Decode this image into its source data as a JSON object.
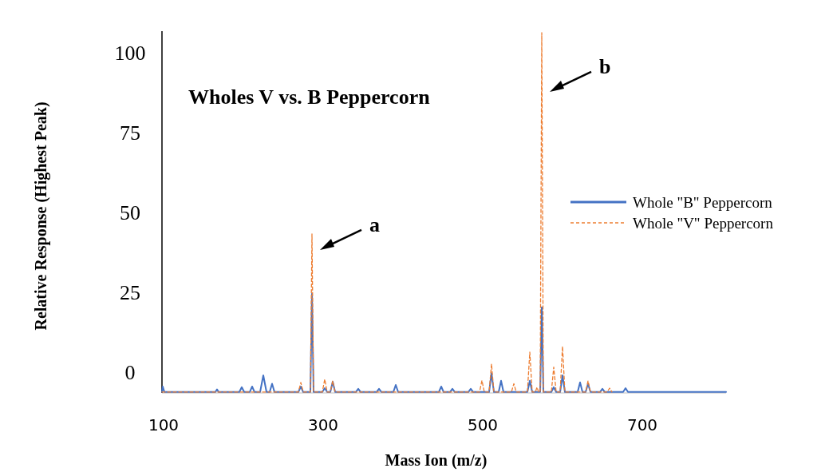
{
  "chart_data": {
    "type": "line",
    "title": "Wholes V vs. B Peppercorn",
    "xlabel": "Mass Ion (m/z)",
    "ylabel": "Relative Response (Highest Peak)",
    "xlim": [
      98,
      805
    ],
    "xticks": [
      100,
      300,
      500,
      700
    ],
    "ylim": [
      -6.3,
      107
    ],
    "yticks": [
      0,
      25,
      50,
      75,
      100
    ],
    "grid": false,
    "legend": "right",
    "annotations": [
      {
        "text": "a",
        "x": 286,
        "y": 43.5
      },
      {
        "text": "b",
        "x": 574,
        "y": 93
      }
    ],
    "series": [
      {
        "name": "Whole \"B\" Peppercorn",
        "color": "#4472c4",
        "line_style": "solid",
        "x": [
          98,
          99,
          101,
          165,
          167,
          169,
          195,
          198,
          201,
          208,
          211,
          214,
          221,
          225,
          229,
          233,
          236,
          239,
          269,
          272,
          275,
          284,
          286,
          288,
          299,
          302,
          305,
          309,
          312,
          315,
          341,
          344,
          347,
          367,
          370,
          373,
          388,
          391,
          394,
          445,
          448,
          451,
          459,
          462,
          465,
          482,
          485,
          488,
          508,
          511,
          514,
          520,
          523,
          526,
          556,
          559,
          562,
          572,
          574,
          576,
          586,
          589,
          592,
          597,
          600,
          603,
          619,
          622,
          625,
          629,
          632,
          635,
          647,
          650,
          653,
          676,
          679,
          682,
          805
        ],
        "values": [
          -6,
          -4.3,
          -6,
          -6,
          -5.2,
          -6,
          -6,
          -4.5,
          -6,
          -6,
          -4.3,
          -6,
          -6,
          -0.8,
          -6,
          -6,
          -3.4,
          -6,
          -6,
          -4.3,
          -6,
          -6,
          24.8,
          -6,
          -6,
          -4.8,
          -6,
          -6,
          -2.8,
          -6,
          -6,
          -5,
          -6,
          -6,
          -5,
          -6,
          -6,
          -3.8,
          -6,
          -6,
          -4.3,
          -6,
          -6,
          -5,
          -6,
          -6,
          -5,
          -6,
          -6,
          -0.1,
          -6,
          -6,
          -2.5,
          -6,
          -6,
          -2.5,
          -6,
          -6,
          20.5,
          -6,
          -6,
          -4.5,
          -6,
          -6,
          -0.8,
          -6,
          -6,
          -3,
          -6,
          -6,
          -3.4,
          -6,
          -6,
          -5,
          -6,
          -6,
          -4.8,
          -6,
          -6
        ]
      },
      {
        "name": "Whole \"V\" Peppercorn",
        "color": "#ed7d31",
        "line_style": "dashed",
        "x": [
          98,
          269,
          272,
          275,
          284,
          286,
          288,
          299,
          302,
          305,
          309,
          312,
          315,
          496,
          499,
          502,
          508,
          511,
          514,
          536,
          539,
          542,
          556,
          559,
          562,
          566,
          568,
          570,
          572,
          574,
          576,
          586,
          589,
          592,
          597,
          600,
          603,
          629,
          632,
          635,
          656,
          659,
          662
        ],
        "values": [
          -6,
          -6,
          -3,
          -6,
          -6,
          43.5,
          -6,
          -6,
          -2,
          -6,
          -6,
          -2.5,
          -6,
          -6,
          -2.4,
          -6,
          -6,
          2.8,
          -6,
          -6,
          -3.4,
          -6,
          -6,
          6.5,
          -6,
          -6,
          -4.5,
          -6,
          -6,
          106.5,
          -6,
          -6,
          1.8,
          -6,
          -6,
          8.3,
          -6,
          -6,
          -2.5,
          -6,
          -6,
          -4.8,
          -6
        ]
      }
    ]
  }
}
